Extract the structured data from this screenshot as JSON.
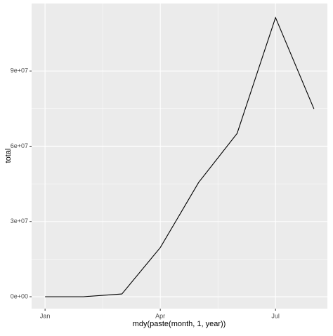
{
  "chart_data": {
    "type": "line",
    "x_label": "mdy(paste(month, 1, year))",
    "y_label": "total",
    "categories": [
      "Jan",
      null,
      null,
      "Apr",
      null,
      null,
      "Jul",
      null
    ],
    "values": [
      0,
      0,
      1100000,
      19600000,
      45600000,
      65100000,
      111300000,
      74900000
    ],
    "color": "#000000",
    "ylim": [
      -4750000,
      116900000
    ],
    "yticks": [
      {
        "value": 0,
        "label": "0e+00"
      },
      {
        "value": 30000000,
        "label": "3e+07"
      },
      {
        "value": 60000000,
        "label": "6e+07"
      },
      {
        "value": 90000000,
        "label": "9e+07"
      }
    ],
    "grid": true
  }
}
